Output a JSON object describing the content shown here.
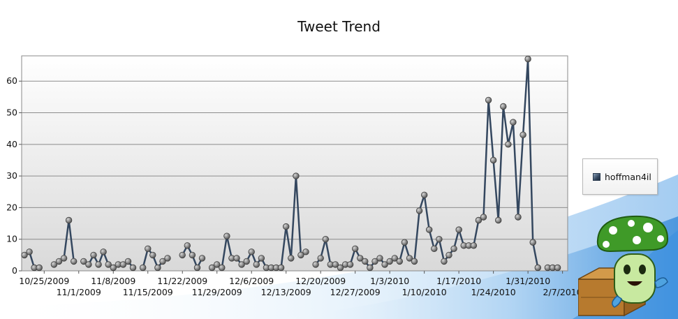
{
  "chart_data": {
    "type": "line",
    "title": "Tweet Trend",
    "xlabel": "",
    "ylabel": "",
    "ylim": [
      0,
      68
    ],
    "yticks": [
      "0",
      "10",
      "20",
      "30",
      "40",
      "50",
      "60"
    ],
    "x_start": "2009-10-21",
    "xticks_row1": [
      "10/25/2009",
      "11/8/2009",
      "11/22/2009",
      "12/6/2009",
      "12/20/2009",
      "1/3/2010",
      "1/17/2010",
      "1/31/2010"
    ],
    "xticks_row2": [
      "11/1/2009",
      "11/15/2009",
      "11/29/2009",
      "12/13/2009",
      "12/27/2009",
      "1/10/2010",
      "1/24/2010",
      "2/7/2010"
    ],
    "grid": true,
    "legend_position": "right",
    "series": [
      {
        "name": "hoffman4il",
        "color": "#34475f",
        "values": [
          5,
          6,
          1,
          1,
          null,
          null,
          2,
          3,
          4,
          16,
          3,
          null,
          3,
          2,
          5,
          2,
          6,
          2,
          1,
          2,
          2,
          3,
          1,
          null,
          1,
          7,
          5,
          1,
          3,
          4,
          null,
          null,
          5,
          8,
          5,
          1,
          4,
          null,
          1,
          2,
          1,
          11,
          4,
          4,
          2,
          3,
          6,
          2,
          4,
          1,
          1,
          1,
          1,
          14,
          4,
          30,
          5,
          6,
          null,
          2,
          4,
          10,
          2,
          2,
          1,
          2,
          2,
          7,
          4,
          3,
          1,
          3,
          4,
          2,
          3,
          4,
          3,
          9,
          4,
          3,
          19,
          24,
          13,
          7,
          10,
          3,
          5,
          7,
          13,
          8,
          8,
          8,
          16,
          17,
          54,
          35,
          16,
          52,
          40,
          47,
          17,
          43,
          67,
          9,
          1,
          null,
          1,
          1,
          1
        ]
      }
    ]
  },
  "legend": {
    "label": "hoffman4il"
  }
}
